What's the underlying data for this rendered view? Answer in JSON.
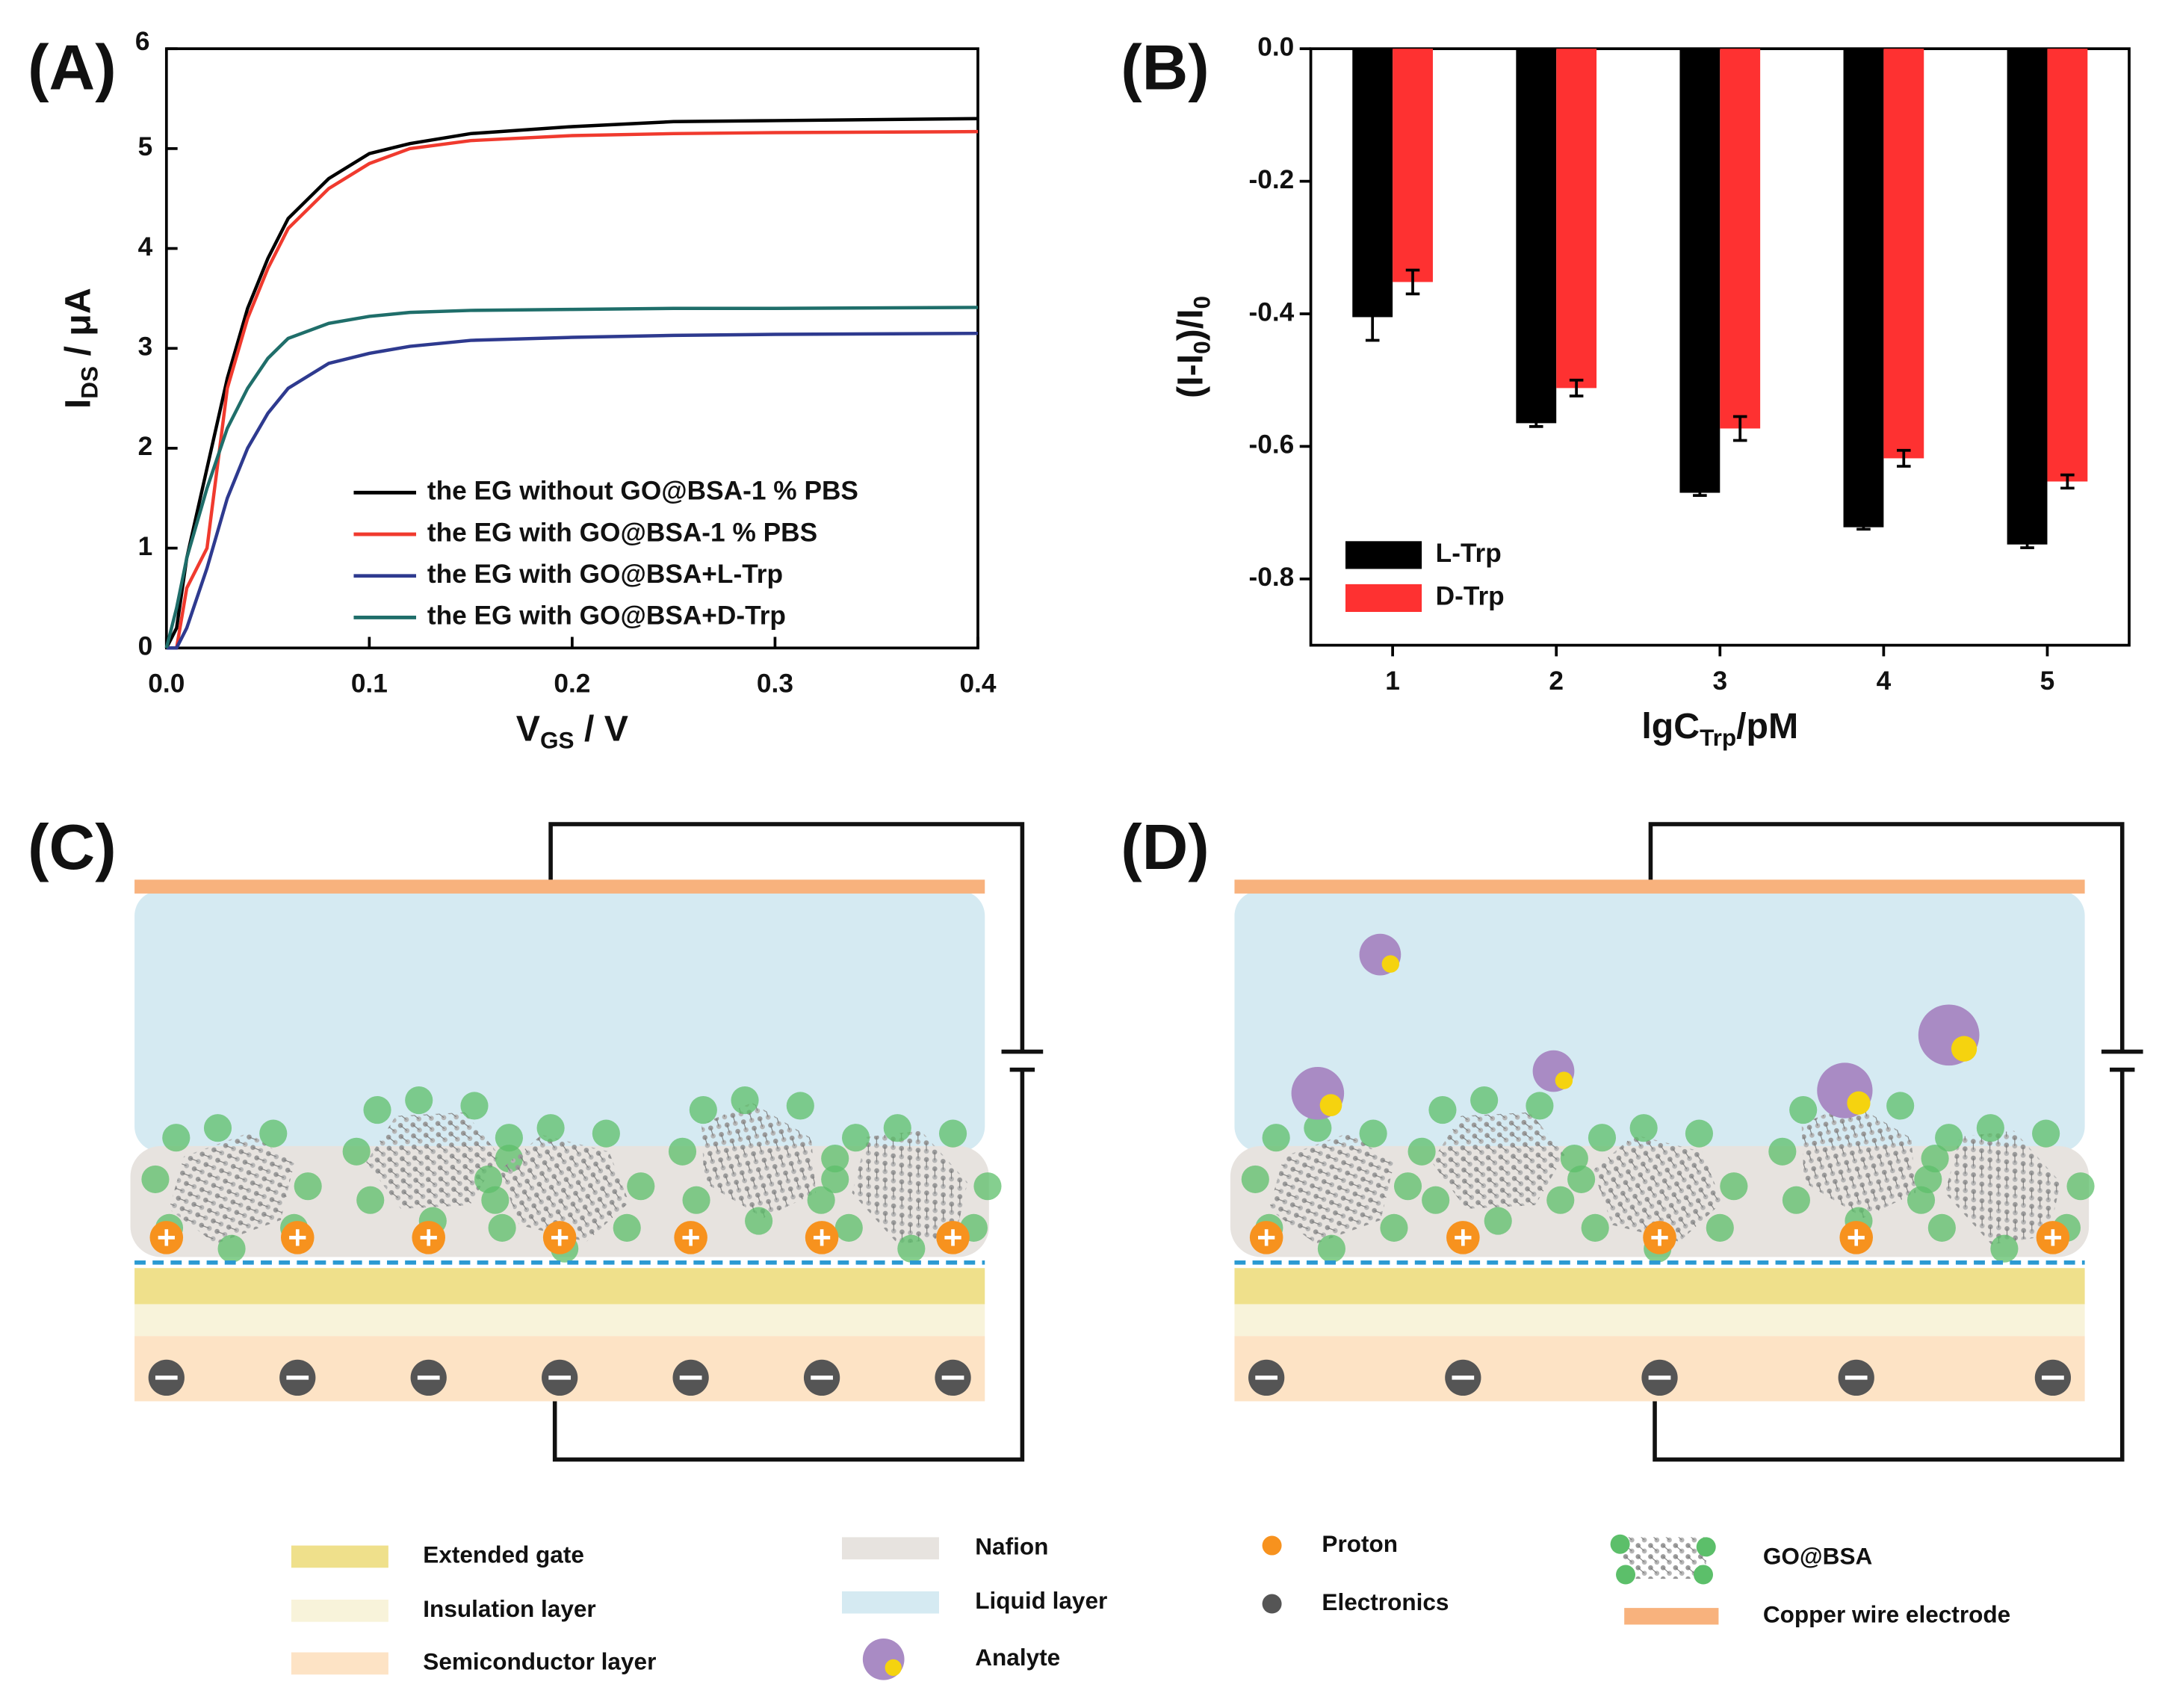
{
  "panel_labels": [
    "(A)",
    "(B)",
    "(C)",
    "(D)"
  ],
  "chart_data": [
    {
      "type": "line",
      "xlabel": [
        "V",
        "GS",
        " / V"
      ],
      "ylabel": [
        "I",
        "DS",
        " / μA"
      ],
      "xlim": [
        0,
        0.4
      ],
      "ylim": [
        0,
        6
      ],
      "xticks": [
        {
          "value": 0,
          "label": "0.0"
        },
        0.1,
        0.2,
        0.3,
        0.4
      ],
      "yticks": [
        0,
        1,
        2,
        3,
        4,
        5,
        6
      ],
      "legend": "lower right",
      "x": [
        0,
        0.005,
        0.01,
        0.02,
        0.03,
        0.04,
        0.05,
        0.06,
        0.08,
        0.1,
        0.12,
        0.15,
        0.2,
        0.25,
        0.3,
        0.4
      ],
      "series": [
        {
          "name": "the EG without GO@BSA-1 % PBS",
          "color": "#000000",
          "values": [
            0,
            0.2,
            0.9,
            1.8,
            2.7,
            3.4,
            3.9,
            4.3,
            4.7,
            4.95,
            5.05,
            5.15,
            5.22,
            5.27,
            5.28,
            5.3
          ]
        },
        {
          "name": "the EG with GO@BSA-1 % PBS",
          "color": "#f03a2e",
          "values": [
            0,
            0,
            0.6,
            1.0,
            2.6,
            3.3,
            3.8,
            4.2,
            4.6,
            4.85,
            5.0,
            5.08,
            5.13,
            5.15,
            5.16,
            5.17
          ]
        },
        {
          "name": "the EG with GO@BSA+L-Trp",
          "color": "#2e3a8f",
          "values": [
            0,
            0,
            0.2,
            0.8,
            1.5,
            2.0,
            2.35,
            2.6,
            2.85,
            2.95,
            3.02,
            3.08,
            3.11,
            3.13,
            3.14,
            3.15
          ]
        },
        {
          "name": "the EG with GO@BSA+D-Trp",
          "color": "#1f6e6a",
          "values": [
            0,
            0.4,
            0.9,
            1.6,
            2.2,
            2.6,
            2.9,
            3.1,
            3.25,
            3.32,
            3.36,
            3.38,
            3.39,
            3.4,
            3.4,
            3.41
          ]
        }
      ]
    },
    {
      "type": "bar",
      "xlabel": [
        "lgC",
        "Trp",
        "/pM"
      ],
      "ylabel": [
        "(I-I",
        "0",
        ")/I",
        "0"
      ],
      "categories": [
        "1",
        "2",
        "3",
        "4",
        "5"
      ],
      "ylim": [
        -0.9,
        0
      ],
      "yticks": [
        {
          "value": 0,
          "label": "0.0"
        },
        -0.2,
        -0.4,
        -0.6,
        -0.8
      ],
      "legend": "lower left",
      "series": [
        {
          "name": "L-Trp",
          "color": "#000000",
          "values": [
            -0.405,
            -0.565,
            -0.67,
            -0.722,
            -0.748
          ],
          "errors": [
            0.035,
            0.005,
            0.004,
            0.003,
            0.005
          ]
        },
        {
          "name": "D-Trp",
          "color": "#fe3131",
          "values": [
            -0.352,
            -0.512,
            -0.573,
            -0.618,
            -0.653
          ],
          "errors": [
            0.018,
            0.012,
            0.018,
            0.012,
            0.01
          ]
        }
      ]
    }
  ],
  "diagram_legend": [
    "Extended gate",
    "Insulation layer",
    "Semiconductor layer",
    "Nafion",
    "Liquid layer",
    "Analyte",
    "Proton",
    "Electronics",
    "GO@BSA",
    "Copper wire electrode"
  ]
}
